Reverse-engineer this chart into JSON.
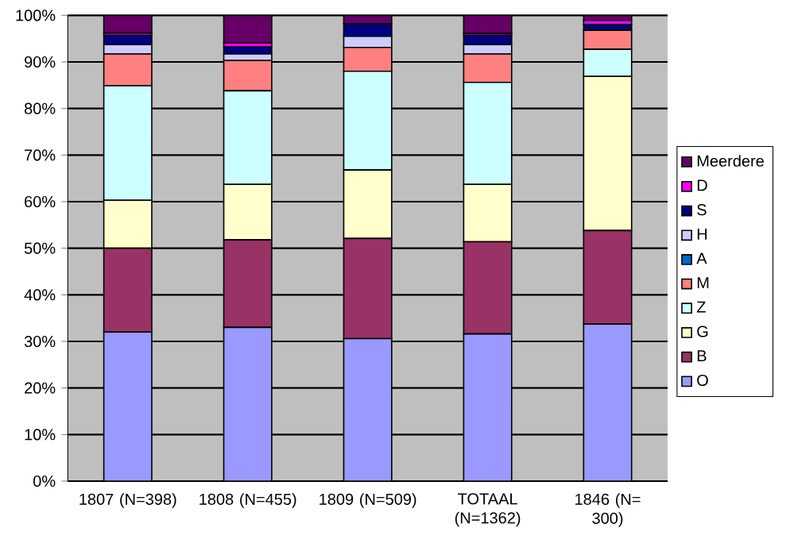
{
  "chart_data": {
    "type": "bar",
    "stacked": true,
    "legend": "right",
    "grid": "y",
    "categories": [
      "1807 (N=398)",
      "1808 (N=455)",
      "1809 (N=509)",
      "TOTAAL (N=1362)",
      "1846 (N= 300)"
    ],
    "ylim": [
      0,
      100
    ],
    "yticks": [
      {
        "value": 0,
        "label": "0%"
      },
      {
        "value": 10,
        "label": "10%"
      },
      {
        "value": 20,
        "label": "20%"
      },
      {
        "value": 30,
        "label": "30%"
      },
      {
        "value": 40,
        "label": "40%"
      },
      {
        "value": 50,
        "label": "50%"
      },
      {
        "value": 60,
        "label": "60%"
      },
      {
        "value": 70,
        "label": "70%"
      },
      {
        "value": 80,
        "label": "80%"
      },
      {
        "value": 90,
        "label": "90%"
      },
      {
        "value": 100,
        "label": "100%"
      }
    ],
    "series": [
      {
        "name": "O",
        "color": "#9999ff",
        "values": [
          32.0,
          33.0,
          30.6,
          31.6,
          33.7
        ]
      },
      {
        "name": "B",
        "color": "#993366",
        "values": [
          18.0,
          18.8,
          21.5,
          19.8,
          20.1
        ]
      },
      {
        "name": "G",
        "color": "#ffffcc",
        "values": [
          10.3,
          11.9,
          14.7,
          12.3,
          33.1
        ]
      },
      {
        "name": "Z",
        "color": "#ccffff",
        "values": [
          24.6,
          20.1,
          21.2,
          21.9,
          5.8
        ]
      },
      {
        "name": "M",
        "color": "#ff8080",
        "values": [
          6.8,
          6.5,
          5.1,
          6.1,
          4.1
        ]
      },
      {
        "name": "A",
        "color": "#0066cc",
        "values": [
          0,
          0,
          0,
          0,
          0
        ]
      },
      {
        "name": "H",
        "color": "#ccccff",
        "values": [
          2.0,
          1.4,
          2.4,
          2.0,
          0
        ]
      },
      {
        "name": "S",
        "color": "#000080",
        "values": [
          2.0,
          1.5,
          2.7,
          2.0,
          1.2
        ]
      },
      {
        "name": "D",
        "color": "#ff00ff",
        "values": [
          0.5,
          0.9,
          0,
          0.4,
          0.9
        ]
      },
      {
        "name": "Meerdere",
        "color": "#660066",
        "values": [
          3.8,
          5.9,
          1.8,
          3.9,
          1.1
        ]
      }
    ]
  }
}
